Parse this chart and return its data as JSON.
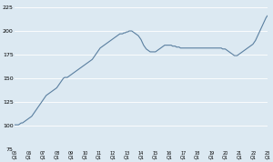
{
  "title": "",
  "background_color": "#dce9f2",
  "plot_bg_color": "#dce9f2",
  "line_color": "#5a7fa0",
  "line_width": 0.8,
  "ylim": [
    75,
    230
  ],
  "yticks": [
    75,
    100,
    125,
    150,
    175,
    200,
    225
  ],
  "xlabel": "",
  "ylabel": "",
  "x_labels": [
    "05\nQ1",
    "06\nQ1",
    "07\nQ1",
    "08\nQ1",
    "09\nQ1",
    "10\nQ1",
    "11\nQ1",
    "12\nQ1",
    "13\nQ1",
    "14\nQ1",
    "15\nQ1",
    "16\nQ1",
    "17\nQ1",
    "18\nQ1",
    "19\nQ1",
    "20\nQ1",
    "21\nQ1",
    "22\nQ1",
    "23\nQ1"
  ],
  "y_values": [
    101,
    101,
    101,
    101,
    102,
    103,
    103,
    104,
    105,
    106,
    107,
    108,
    109,
    110,
    112,
    114,
    116,
    118,
    120,
    122,
    124,
    126,
    128,
    130,
    132,
    133,
    134,
    135,
    136,
    137,
    138,
    139,
    140,
    142,
    144,
    146,
    148,
    150,
    151,
    151,
    151,
    152,
    153,
    154,
    155,
    156,
    157,
    158,
    159,
    160,
    161,
    162,
    163,
    164,
    165,
    166,
    167,
    168,
    169,
    170,
    172,
    174,
    176,
    178,
    180,
    182,
    183,
    184,
    185,
    186,
    187,
    188,
    189,
    190,
    191,
    192,
    193,
    194,
    195,
    196,
    197,
    197,
    197,
    198,
    198,
    199,
    199,
    200,
    200,
    200,
    199,
    198,
    197,
    196,
    195,
    193,
    191,
    188,
    185,
    183,
    181,
    180,
    179,
    178,
    178,
    178,
    178,
    178,
    179,
    180,
    181,
    182,
    183,
    184,
    185,
    185,
    185,
    185,
    185,
    185,
    184,
    184,
    184,
    183,
    183,
    183,
    182,
    182,
    182,
    182,
    182,
    182,
    182,
    182,
    182,
    182,
    182,
    182,
    182,
    182,
    182,
    182,
    182,
    182,
    182,
    182,
    182,
    182,
    182,
    182,
    182,
    182,
    182,
    182,
    182,
    182,
    182,
    182,
    181,
    181,
    181,
    180,
    179,
    178,
    177,
    176,
    175,
    174,
    174,
    174,
    175,
    176,
    177,
    178,
    179,
    180,
    181,
    182,
    183,
    184,
    185,
    186,
    188,
    190,
    193,
    196,
    199,
    202,
    205,
    208,
    211,
    214,
    216
  ]
}
